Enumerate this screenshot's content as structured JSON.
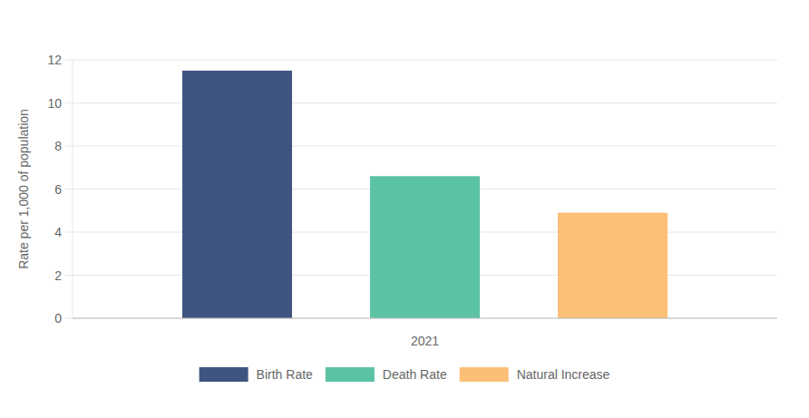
{
  "chart_data": {
    "type": "bar",
    "y_label": "Rate per 1,000 of population",
    "categories": [
      "2021"
    ],
    "series": [
      {
        "name": "Birth Rate",
        "color": "#3f5580",
        "values": [
          11.5
        ]
      },
      {
        "name": "Death Rate",
        "color": "#5bc2a3",
        "values": [
          6.6
        ]
      },
      {
        "name": "Natural Increase",
        "color": "#fbbf77",
        "values": [
          4.9
        ]
      }
    ],
    "ylim": [
      0,
      12
    ],
    "yticks": [
      0,
      2,
      4,
      6,
      8,
      10,
      12
    ],
    "grid": true,
    "legend": "bottom"
  }
}
